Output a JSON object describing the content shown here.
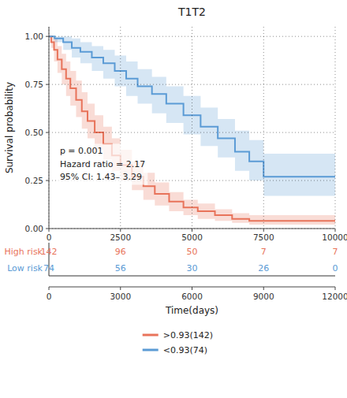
{
  "chart_data": {
    "type": "step",
    "title": "T1T2",
    "x_label": "Time(days)",
    "y_label": "Survival probability",
    "xlim": [
      0,
      10000
    ],
    "xticks": [
      0,
      2500,
      5000,
      7500,
      10000
    ],
    "ylim": [
      0.0,
      1.05
    ],
    "yticks": [
      {
        "value": 0.0,
        "label": "0.00"
      },
      {
        "value": 0.25,
        "label": "0.25"
      },
      {
        "value": 0.5,
        "label": "0.50"
      },
      {
        "value": 0.75,
        "label": "0.75"
      },
      {
        "value": 1.0,
        "label": "1.00"
      }
    ],
    "x2lim": [
      0,
      12000
    ],
    "x2ticks": [
      0,
      3000,
      6000,
      9000,
      12000
    ],
    "grid": true,
    "legend": "bottom",
    "annotations": [
      "p = 0.001",
      "Hazard ratio = 2.17",
      "95% CI: 1.43– 3.29"
    ],
    "series": [
      {
        "name": ">0.93(142)",
        "color": "#E8735A",
        "x": [
          0,
          80,
          180,
          300,
          450,
          600,
          750,
          950,
          1150,
          1350,
          1600,
          1900,
          2200,
          2500,
          2900,
          3300,
          3700,
          4200,
          4700,
          5200,
          5800,
          6400,
          7000,
          7500,
          7600,
          10000
        ],
        "values": [
          1.0,
          0.97,
          0.93,
          0.88,
          0.83,
          0.78,
          0.73,
          0.67,
          0.61,
          0.56,
          0.5,
          0.44,
          0.38,
          0.33,
          0.27,
          0.22,
          0.18,
          0.14,
          0.11,
          0.09,
          0.07,
          0.05,
          0.04,
          0.04,
          0.04,
          0.04
        ],
        "upper": [
          1.0,
          1.0,
          0.99,
          0.95,
          0.91,
          0.87,
          0.82,
          0.77,
          0.71,
          0.65,
          0.59,
          0.53,
          0.47,
          0.41,
          0.35,
          0.29,
          0.24,
          0.19,
          0.15,
          0.13,
          0.1,
          0.08,
          0.07,
          0.07,
          0.07,
          0.07
        ],
        "lower": [
          1.0,
          0.94,
          0.87,
          0.81,
          0.75,
          0.69,
          0.64,
          0.58,
          0.52,
          0.47,
          0.41,
          0.36,
          0.3,
          0.25,
          0.2,
          0.15,
          0.12,
          0.09,
          0.07,
          0.05,
          0.04,
          0.03,
          0.02,
          0.02,
          0.02,
          0.02
        ]
      },
      {
        "name": "<0.93(74)",
        "color": "#5B9BD5",
        "x": [
          0,
          200,
          500,
          800,
          1100,
          1500,
          1900,
          2300,
          2700,
          3100,
          3600,
          4100,
          4700,
          5300,
          5900,
          6500,
          7000,
          7500,
          7600,
          10000
        ],
        "values": [
          1.0,
          0.99,
          0.97,
          0.94,
          0.92,
          0.89,
          0.86,
          0.82,
          0.78,
          0.74,
          0.7,
          0.65,
          0.59,
          0.53,
          0.47,
          0.4,
          0.35,
          0.27,
          0.27,
          0.27
        ],
        "upper": [
          1.0,
          1.0,
          1.0,
          0.99,
          0.97,
          0.95,
          0.93,
          0.9,
          0.87,
          0.83,
          0.79,
          0.74,
          0.69,
          0.63,
          0.57,
          0.51,
          0.46,
          0.39,
          0.39,
          0.39
        ],
        "lower": [
          1.0,
          0.97,
          0.93,
          0.89,
          0.86,
          0.82,
          0.78,
          0.74,
          0.69,
          0.65,
          0.6,
          0.55,
          0.49,
          0.43,
          0.37,
          0.3,
          0.25,
          0.17,
          0.17,
          0.17
        ]
      }
    ],
    "at_risk": {
      "times": [
        0,
        2500,
        5000,
        7500,
        10000
      ],
      "rows": [
        {
          "name": "High risk",
          "color": "#E8735A",
          "values": [
            142,
            96,
            50,
            7,
            7
          ]
        },
        {
          "name": "Low risk",
          "color": "#5B9BD5",
          "values": [
            74,
            56,
            30,
            26,
            0
          ]
        }
      ]
    }
  }
}
